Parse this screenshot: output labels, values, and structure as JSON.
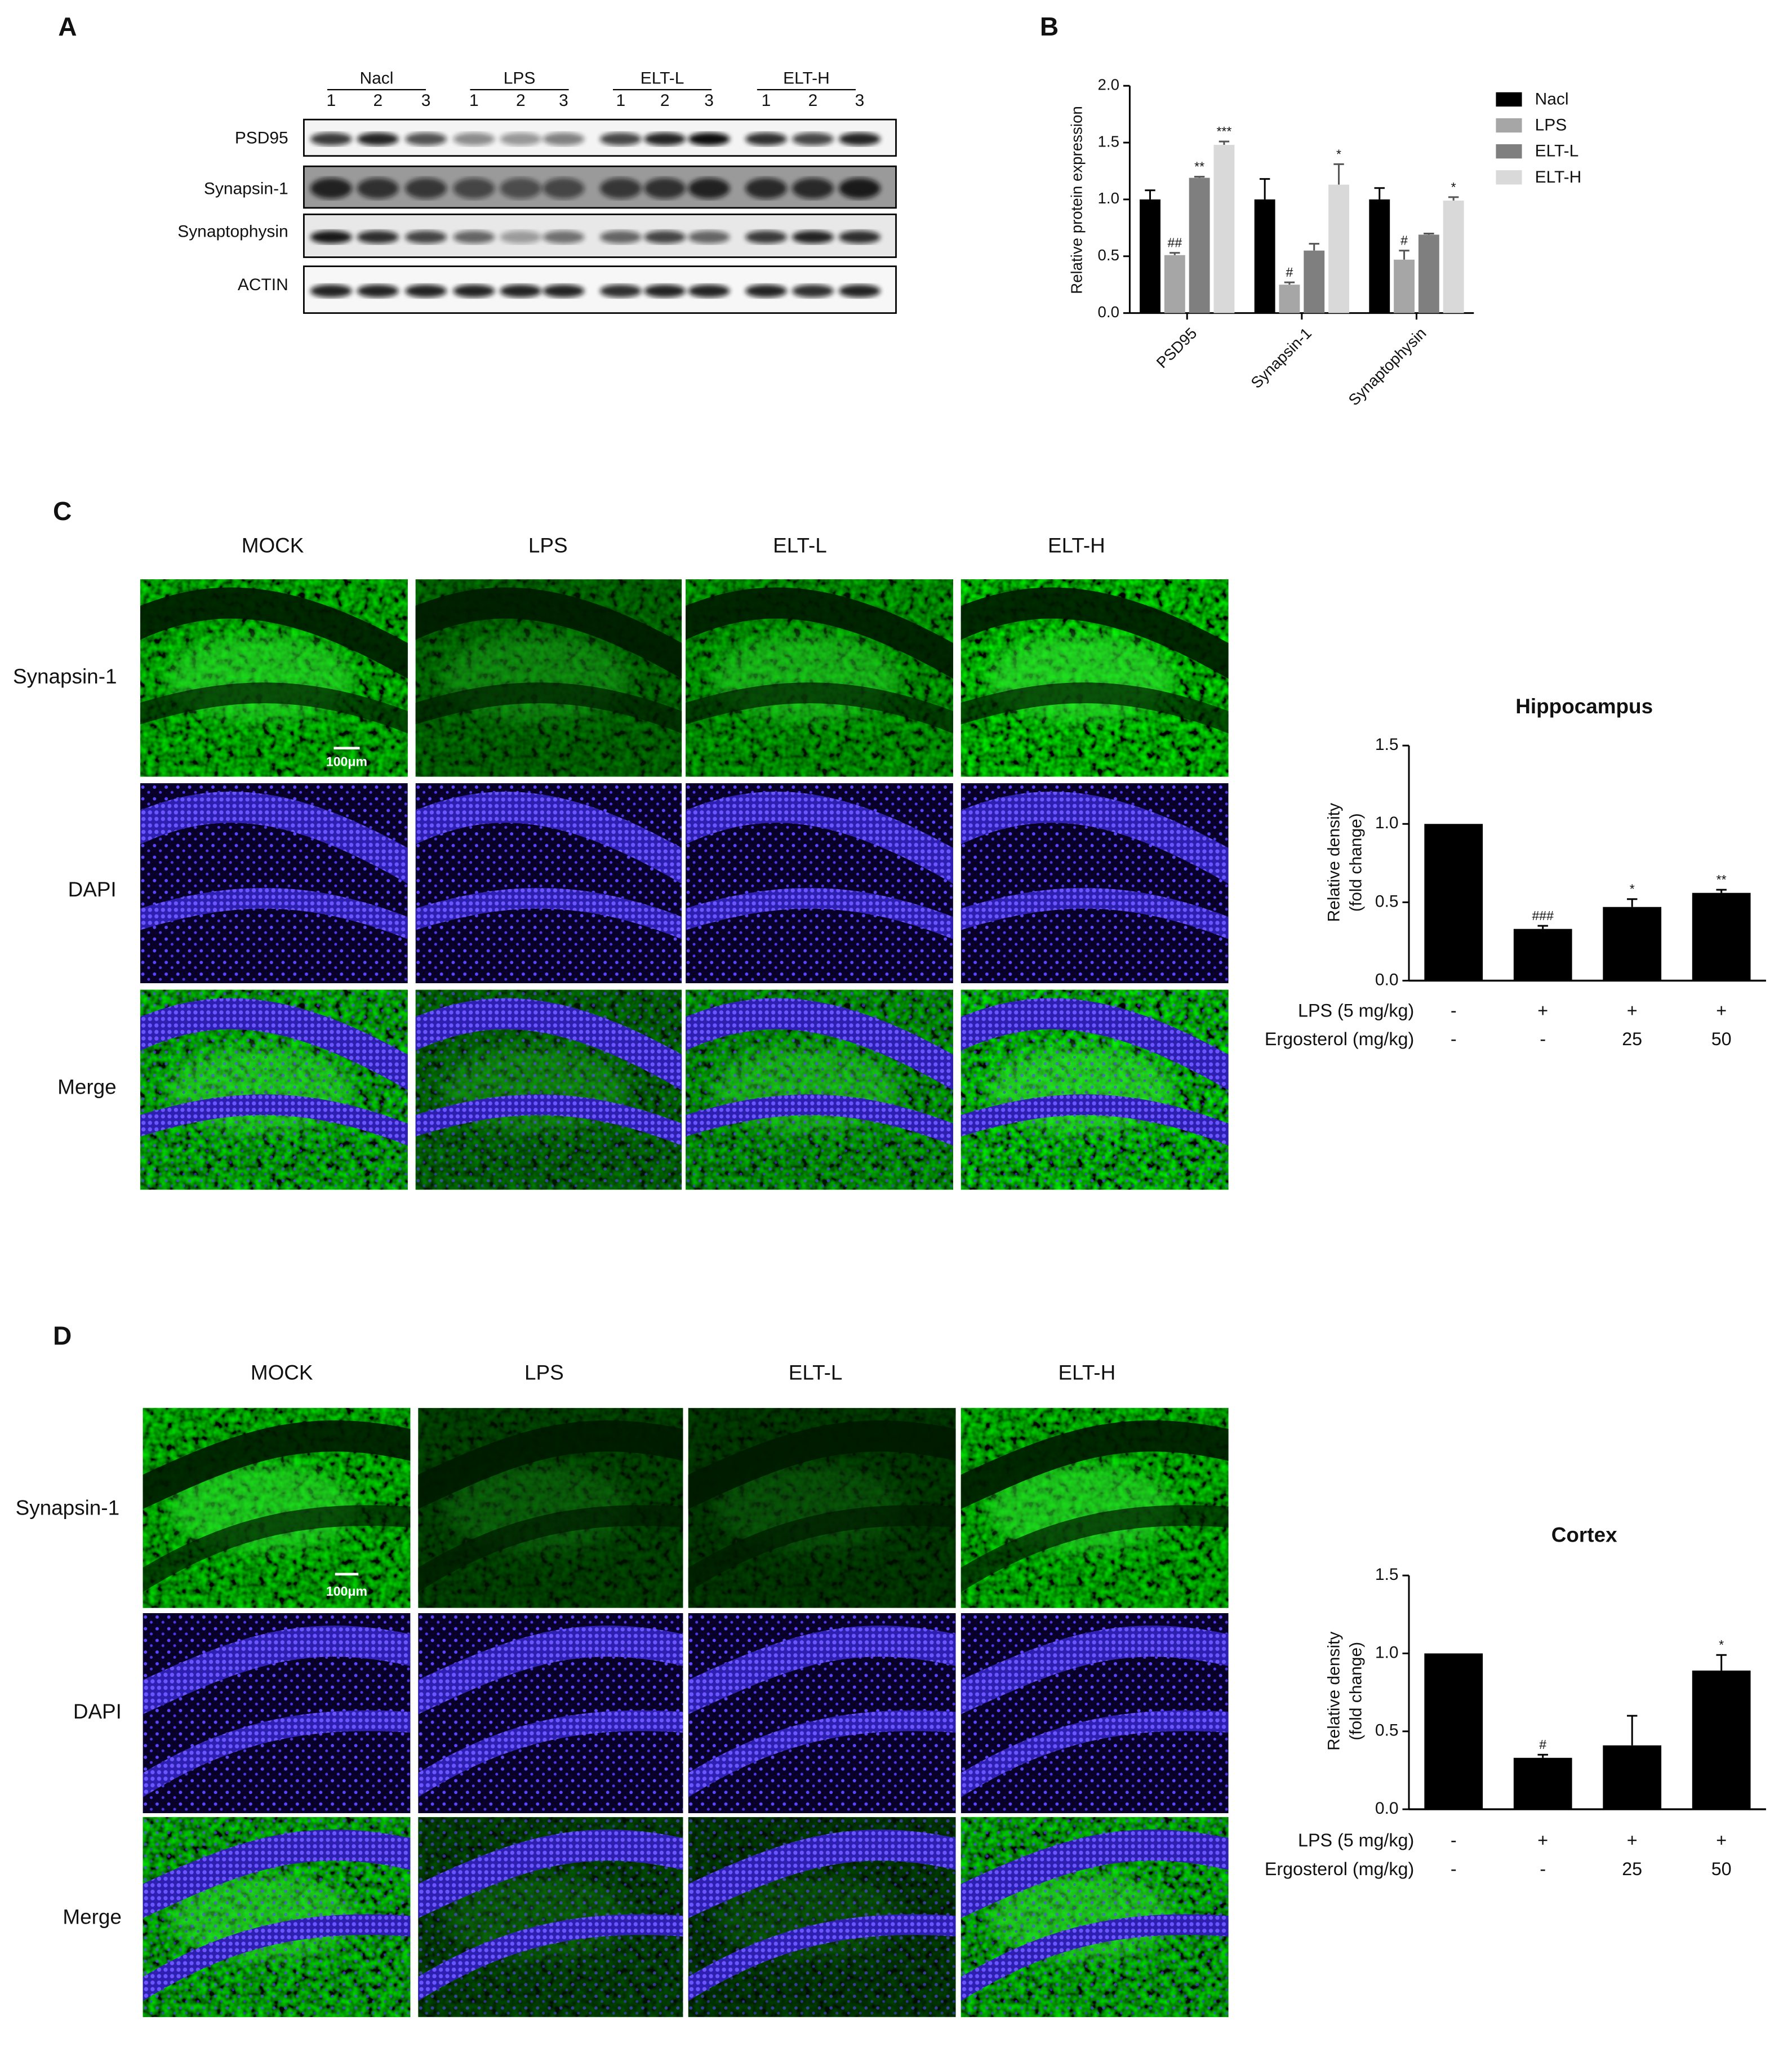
{
  "panel_labels": [
    "A",
    "B",
    "C",
    "D"
  ],
  "blot": {
    "groups": [
      "Nacl",
      "LPS",
      "ELT-L",
      "ELT-H"
    ],
    "lanes": [
      "1",
      "2",
      "3"
    ],
    "proteins": [
      "PSD95",
      "Synapsin-1",
      "Synaptophysin",
      "ACTIN"
    ]
  },
  "chart_data": [
    {
      "type": "grouped-bar",
      "ylabel": "Relative protein expression",
      "categories": [
        "PSD95",
        "Synapsin-1",
        "Synaptophysin"
      ],
      "ylim": [
        0,
        2
      ],
      "yticks": [
        {
          "value": 0,
          "label": "0.0"
        },
        0.5,
        {
          "value": 1,
          "label": "1.0"
        },
        1.5,
        {
          "value": 2,
          "label": "2.0"
        }
      ],
      "legend": "right",
      "series": [
        {
          "name": "Nacl",
          "color": "#000000",
          "values": [
            1.0,
            1.0,
            1.0
          ],
          "errors": [
            0.08,
            0.18,
            0.1
          ],
          "annotations": [
            null,
            null,
            null
          ]
        },
        {
          "name": "LPS",
          "color": "#a6a6a6",
          "values": [
            0.51,
            0.25,
            0.47
          ],
          "errors": [
            0.02,
            0.02,
            0.08
          ],
          "annotations": [
            "##",
            "#",
            "#"
          ]
        },
        {
          "name": "ELT-L",
          "color": "#7f7f7f",
          "values": [
            1.19,
            0.55,
            0.69
          ],
          "errors": [
            0.01,
            0.06,
            0.01
          ],
          "annotations": [
            "**",
            null,
            null
          ]
        },
        {
          "name": "ELT-H",
          "color": "#d9d9d9",
          "values": [
            1.48,
            1.13,
            0.99
          ],
          "errors": [
            0.03,
            0.18,
            0.03
          ],
          "annotations": [
            "***",
            "*",
            "*"
          ]
        }
      ]
    },
    {
      "type": "bar",
      "title": "Hippocampus",
      "ylabel": [
        "Relative density",
        "(fold change)"
      ],
      "ylim": [
        0,
        1.5
      ],
      "yticks": [
        {
          "value": 0,
          "label": "0.0"
        },
        0.5,
        {
          "value": 1,
          "label": "1.0"
        },
        1.5
      ],
      "color": "#000000",
      "values": [
        1.0,
        0.33,
        0.47,
        0.56
      ],
      "errors": [
        0,
        0.02,
        0.05,
        0.02
      ],
      "annotations": [
        null,
        "###",
        "*",
        "**"
      ],
      "treatments": [
        {
          "label": "LPS (5 mg/kg)",
          "values": [
            "-",
            "+",
            "+",
            "+"
          ]
        },
        {
          "label": "Ergosterol (mg/kg)",
          "values": [
            "-",
            "-",
            "25",
            "50"
          ]
        }
      ]
    },
    {
      "type": "bar",
      "title": "Cortex",
      "ylabel": [
        "Relative density",
        "(fold change)"
      ],
      "ylim": [
        0,
        1.5
      ],
      "yticks": [
        {
          "value": 0,
          "label": "0.0"
        },
        0.5,
        {
          "value": 1,
          "label": "1.0"
        },
        1.5
      ],
      "color": "#000000",
      "values": [
        1.0,
        0.33,
        0.41,
        0.89
      ],
      "errors": [
        0,
        0.02,
        0.19,
        0.1
      ],
      "annotations": [
        null,
        "#",
        null,
        "*"
      ],
      "treatments": [
        {
          "label": "LPS (5 mg/kg)",
          "values": [
            "-",
            "+",
            "+",
            "+"
          ]
        },
        {
          "label": "Ergosterol (mg/kg)",
          "values": [
            "-",
            "-",
            "25",
            "50"
          ]
        }
      ]
    }
  ],
  "micrographs": [
    {
      "columns": [
        "MOCK",
        "LPS",
        "ELT-L",
        "ELT-H"
      ],
      "rows": [
        "Synapsin-1",
        "DAPI",
        "Merge"
      ],
      "scale_bar": "100μm"
    },
    {
      "columns": [
        "MOCK",
        "LPS",
        "ELT-L",
        "ELT-H"
      ],
      "rows": [
        "Synapsin-1",
        "DAPI",
        "Merge"
      ],
      "scale_bar": "100μm"
    }
  ]
}
